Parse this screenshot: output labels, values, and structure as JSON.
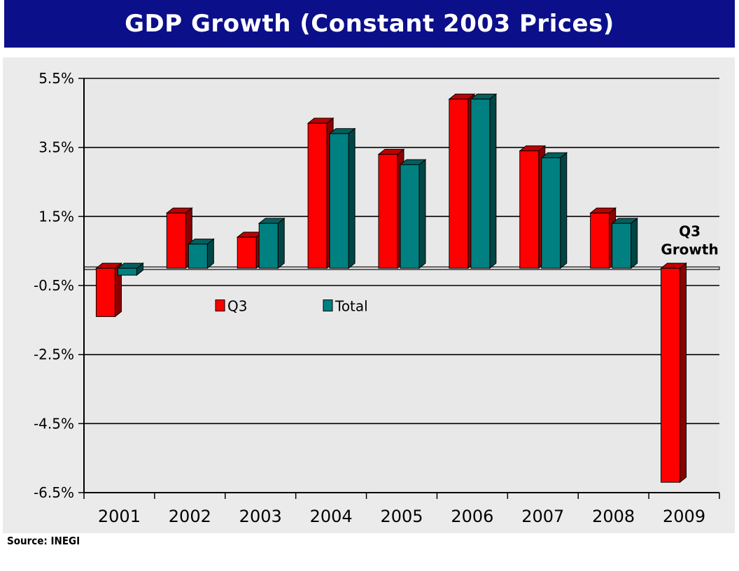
{
  "page": {
    "title": "GDP Growth (Constant 2003 Prices)",
    "source": "Source: INEGI"
  },
  "chart_data": {
    "type": "bar",
    "title": "GDP Growth (Constant 2003 Prices)",
    "categories": [
      "2001",
      "2002",
      "2003",
      "2004",
      "2005",
      "2006",
      "2007",
      "2008",
      "2009"
    ],
    "series": [
      {
        "name": "Q3",
        "color": "#ff0000",
        "values": [
          -1.4,
          1.6,
          0.9,
          4.2,
          3.3,
          4.9,
          3.4,
          1.6,
          -6.2
        ]
      },
      {
        "name": "Total",
        "color": "#008080",
        "values": [
          -0.2,
          0.7,
          1.3,
          3.9,
          3.0,
          4.9,
          3.2,
          1.3,
          null
        ]
      }
    ],
    "yticks": [
      "5.5%",
      "3.5%",
      "1.5%",
      "-0.5%",
      "-2.5%",
      "-4.5%",
      "-6.5%"
    ],
    "ylim": [
      -6.5,
      5.5
    ],
    "xlabel": "",
    "ylabel": "",
    "grid": true,
    "legend": [
      "Q3",
      "Total"
    ],
    "annotation": "Q3\nGrowth"
  }
}
